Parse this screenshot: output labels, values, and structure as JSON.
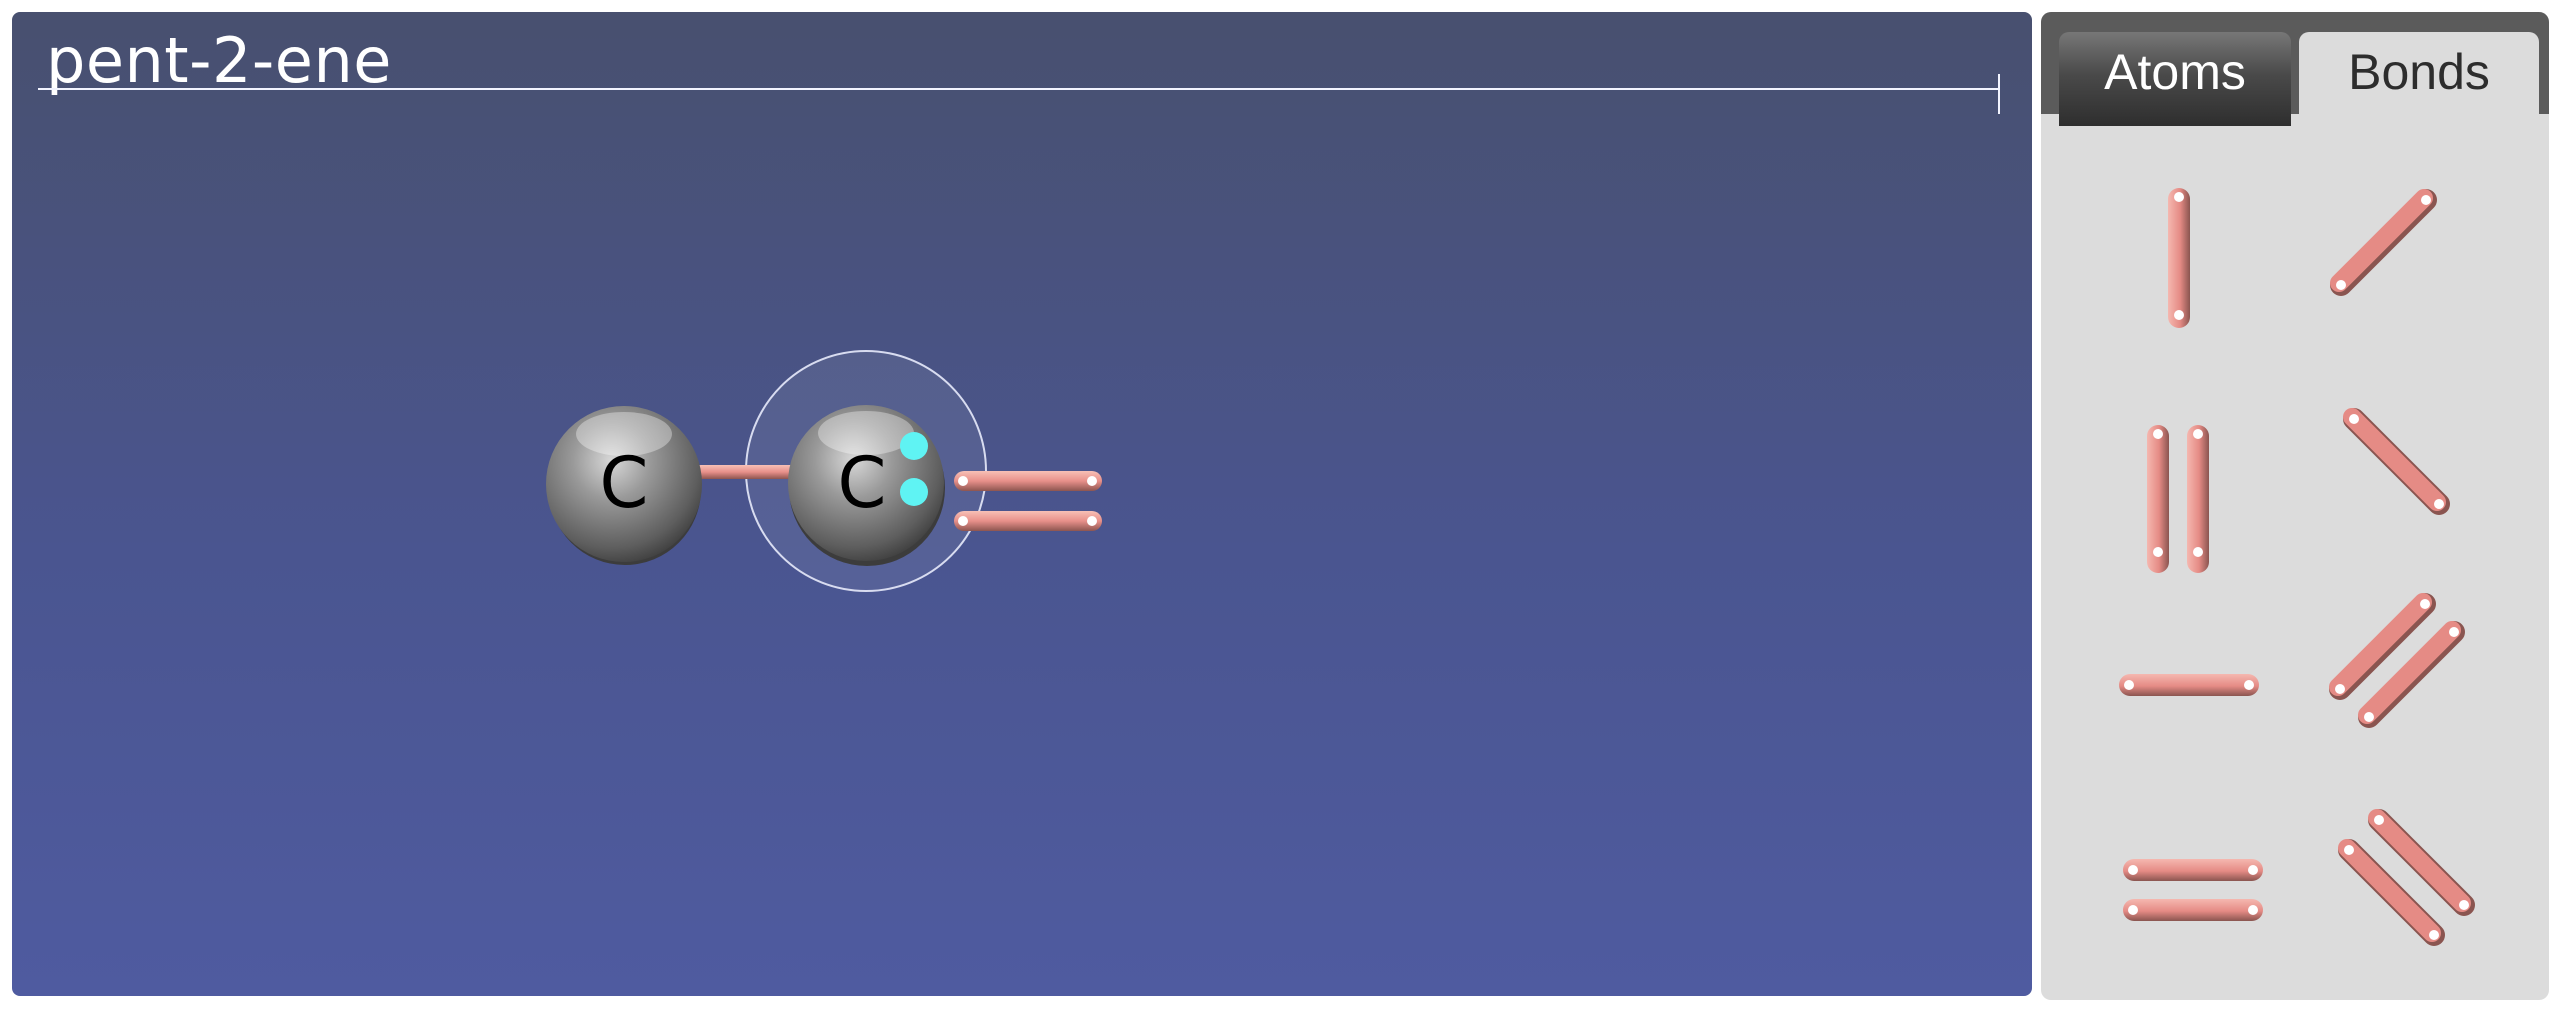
{
  "canvas": {
    "molecule_name": "pent-2-ene",
    "atoms": [
      {
        "label": "C"
      },
      {
        "label": "C"
      }
    ]
  },
  "panel": {
    "tabs": [
      {
        "label": "Atoms",
        "active": false
      },
      {
        "label": "Bonds",
        "active": true
      }
    ],
    "bond_tools": [
      "single-vertical",
      "single-diagonal-up",
      "double-vertical",
      "single-diagonal-down",
      "single-horizontal",
      "double-diagonal-up",
      "double-horizontal",
      "double-diagonal-down"
    ]
  },
  "colors": {
    "bond": "#e8908a",
    "lone_pair": "#5ff3f3",
    "atom": "#7b7b7b",
    "background_top": "#48506f",
    "background_bottom": "#4f5ba0"
  }
}
